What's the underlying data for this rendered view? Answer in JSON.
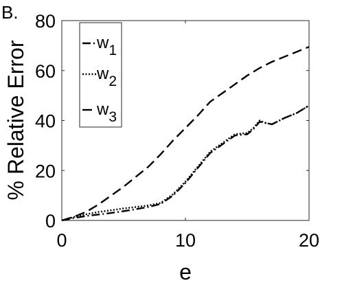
{
  "panel_label": "B.",
  "chart_data": {
    "type": "line",
    "title": "",
    "xlabel": "e",
    "ylabel": "% Relative Error",
    "xlim": [
      0,
      20
    ],
    "ylim": [
      0,
      80
    ],
    "xticks": [
      0,
      10,
      20
    ],
    "yticks": [
      0,
      20,
      40,
      60,
      80
    ],
    "grid": false,
    "legend_position": "top-left",
    "series": [
      {
        "name": "w1",
        "legend_base": "w",
        "legend_sub": "1",
        "dash": "dash-dot",
        "color": "#000000",
        "x": [
          0,
          1,
          2,
          3,
          4,
          5,
          6,
          7,
          8,
          9,
          10,
          11,
          12,
          13,
          14,
          15,
          15.5,
          16,
          16.5,
          17,
          18,
          19,
          20
        ],
        "y": [
          0,
          1.0,
          1.8,
          2.4,
          3.0,
          3.7,
          4.5,
          5.4,
          6.6,
          10.0,
          15.0,
          21.0,
          27.0,
          30.5,
          34.0,
          34.5,
          36.5,
          39.5,
          39.0,
          38.5,
          41.0,
          43.0,
          46.0
        ]
      },
      {
        "name": "w2",
        "legend_base": "w",
        "legend_sub": "2",
        "dash": "dotted",
        "color": "#000000",
        "x": [
          0,
          1,
          2,
          3,
          4,
          5,
          6,
          7,
          8,
          9,
          10,
          11,
          12,
          13,
          14,
          15,
          15.5,
          16,
          16.5,
          17,
          18,
          19,
          20
        ],
        "y": [
          0,
          1.4,
          2.5,
          3.4,
          4.1,
          4.8,
          5.4,
          6.0,
          7.0,
          10.5,
          15.5,
          21.5,
          27.5,
          31.0,
          34.5,
          35.0,
          37.0,
          40.0,
          39.0,
          38.5,
          41.0,
          43.0,
          46.0
        ]
      },
      {
        "name": "w3",
        "legend_base": "w",
        "legend_sub": "3",
        "dash": "dashed",
        "color": "#000000",
        "x": [
          0,
          1,
          2,
          3,
          4,
          5,
          6,
          7,
          8,
          9,
          10,
          11,
          12,
          13,
          14,
          15,
          16,
          17,
          18,
          19,
          20
        ],
        "y": [
          0,
          1.5,
          3.5,
          6.5,
          10.0,
          13.5,
          17.5,
          21.5,
          26.5,
          32.0,
          37.0,
          42.0,
          47.5,
          51.0,
          54.5,
          58.0,
          61.0,
          63.5,
          65.5,
          67.5,
          69.5
        ]
      }
    ]
  }
}
